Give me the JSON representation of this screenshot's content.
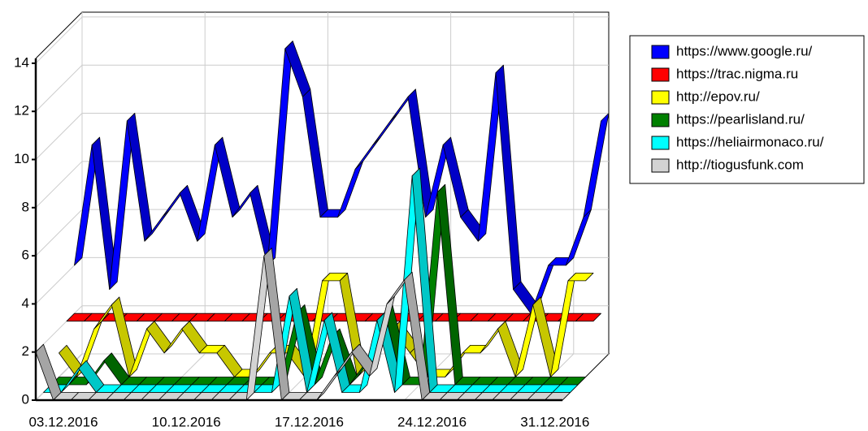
{
  "chart_data": {
    "type": "line3d",
    "categories": [
      "03.12.2016",
      null,
      null,
      null,
      null,
      null,
      null,
      "10.12.2016",
      null,
      null,
      null,
      null,
      null,
      null,
      "17.12.2016",
      null,
      null,
      null,
      null,
      null,
      null,
      "24.12.2016",
      null,
      null,
      null,
      null,
      null,
      null,
      "31.12.2016",
      null,
      null
    ],
    "ylim": [
      0,
      14.2
    ],
    "yticks": [
      0,
      2,
      4,
      6,
      8,
      10,
      12,
      14
    ],
    "grid": true,
    "legend": "right",
    "series": [
      {
        "name": "https://www.google.ru/",
        "color": "#0000ff",
        "values": [
          4,
          9,
          3,
          10,
          5,
          6,
          7,
          5,
          9,
          6,
          7,
          4,
          13,
          11,
          6,
          6,
          8,
          9,
          10,
          11,
          6,
          9,
          6,
          5,
          12,
          3,
          2,
          4,
          4,
          6,
          10
        ]
      },
      {
        "name": "https://trac.nigma.ru",
        "color": "#ff0000",
        "values": [
          2,
          2,
          2,
          2,
          2,
          2,
          2,
          2,
          2,
          2,
          2,
          2,
          2,
          2,
          2,
          2,
          2,
          2,
          2,
          2,
          2,
          2,
          2,
          2,
          2,
          2,
          2,
          2,
          2,
          2,
          2
        ]
      },
      {
        "name": "http://epov.ru/",
        "color": "#ffff00",
        "values": [
          1,
          0,
          2,
          3,
          0,
          2,
          1,
          2,
          1,
          1,
          0,
          0,
          1,
          1,
          0,
          4,
          4,
          0,
          1,
          2,
          1,
          0,
          0,
          1,
          1,
          2,
          0,
          3,
          0,
          4,
          4
        ]
      },
      {
        "name": "https://pearlisland.ru/",
        "color": "#008000",
        "values": [
          0,
          0,
          0,
          1,
          0,
          0,
          0,
          0,
          0,
          0,
          0,
          0,
          0,
          0,
          3,
          0,
          2,
          0,
          1,
          3,
          0,
          0,
          8,
          0,
          0,
          0,
          0,
          0,
          0,
          0,
          0
        ]
      },
      {
        "name": "https://heliairmonaco.ru/",
        "color": "#00ffff",
        "values": [
          0,
          0,
          1,
          0,
          0,
          0,
          0,
          0,
          0,
          0,
          0,
          0,
          0,
          0,
          4,
          0,
          3,
          0,
          0,
          3,
          0,
          9,
          0,
          0,
          0,
          0,
          0,
          0,
          0,
          0,
          0
        ]
      },
      {
        "name": "http://tiogusfunk.com",
        "color": "#d3d3d3",
        "values": [
          2,
          0,
          0,
          0,
          0,
          0,
          0,
          0,
          0,
          0,
          0,
          0,
          0,
          6,
          0,
          0,
          0,
          1,
          2,
          1,
          4,
          5,
          0,
          0,
          0,
          0,
          0,
          0,
          0,
          0,
          0
        ]
      }
    ]
  }
}
